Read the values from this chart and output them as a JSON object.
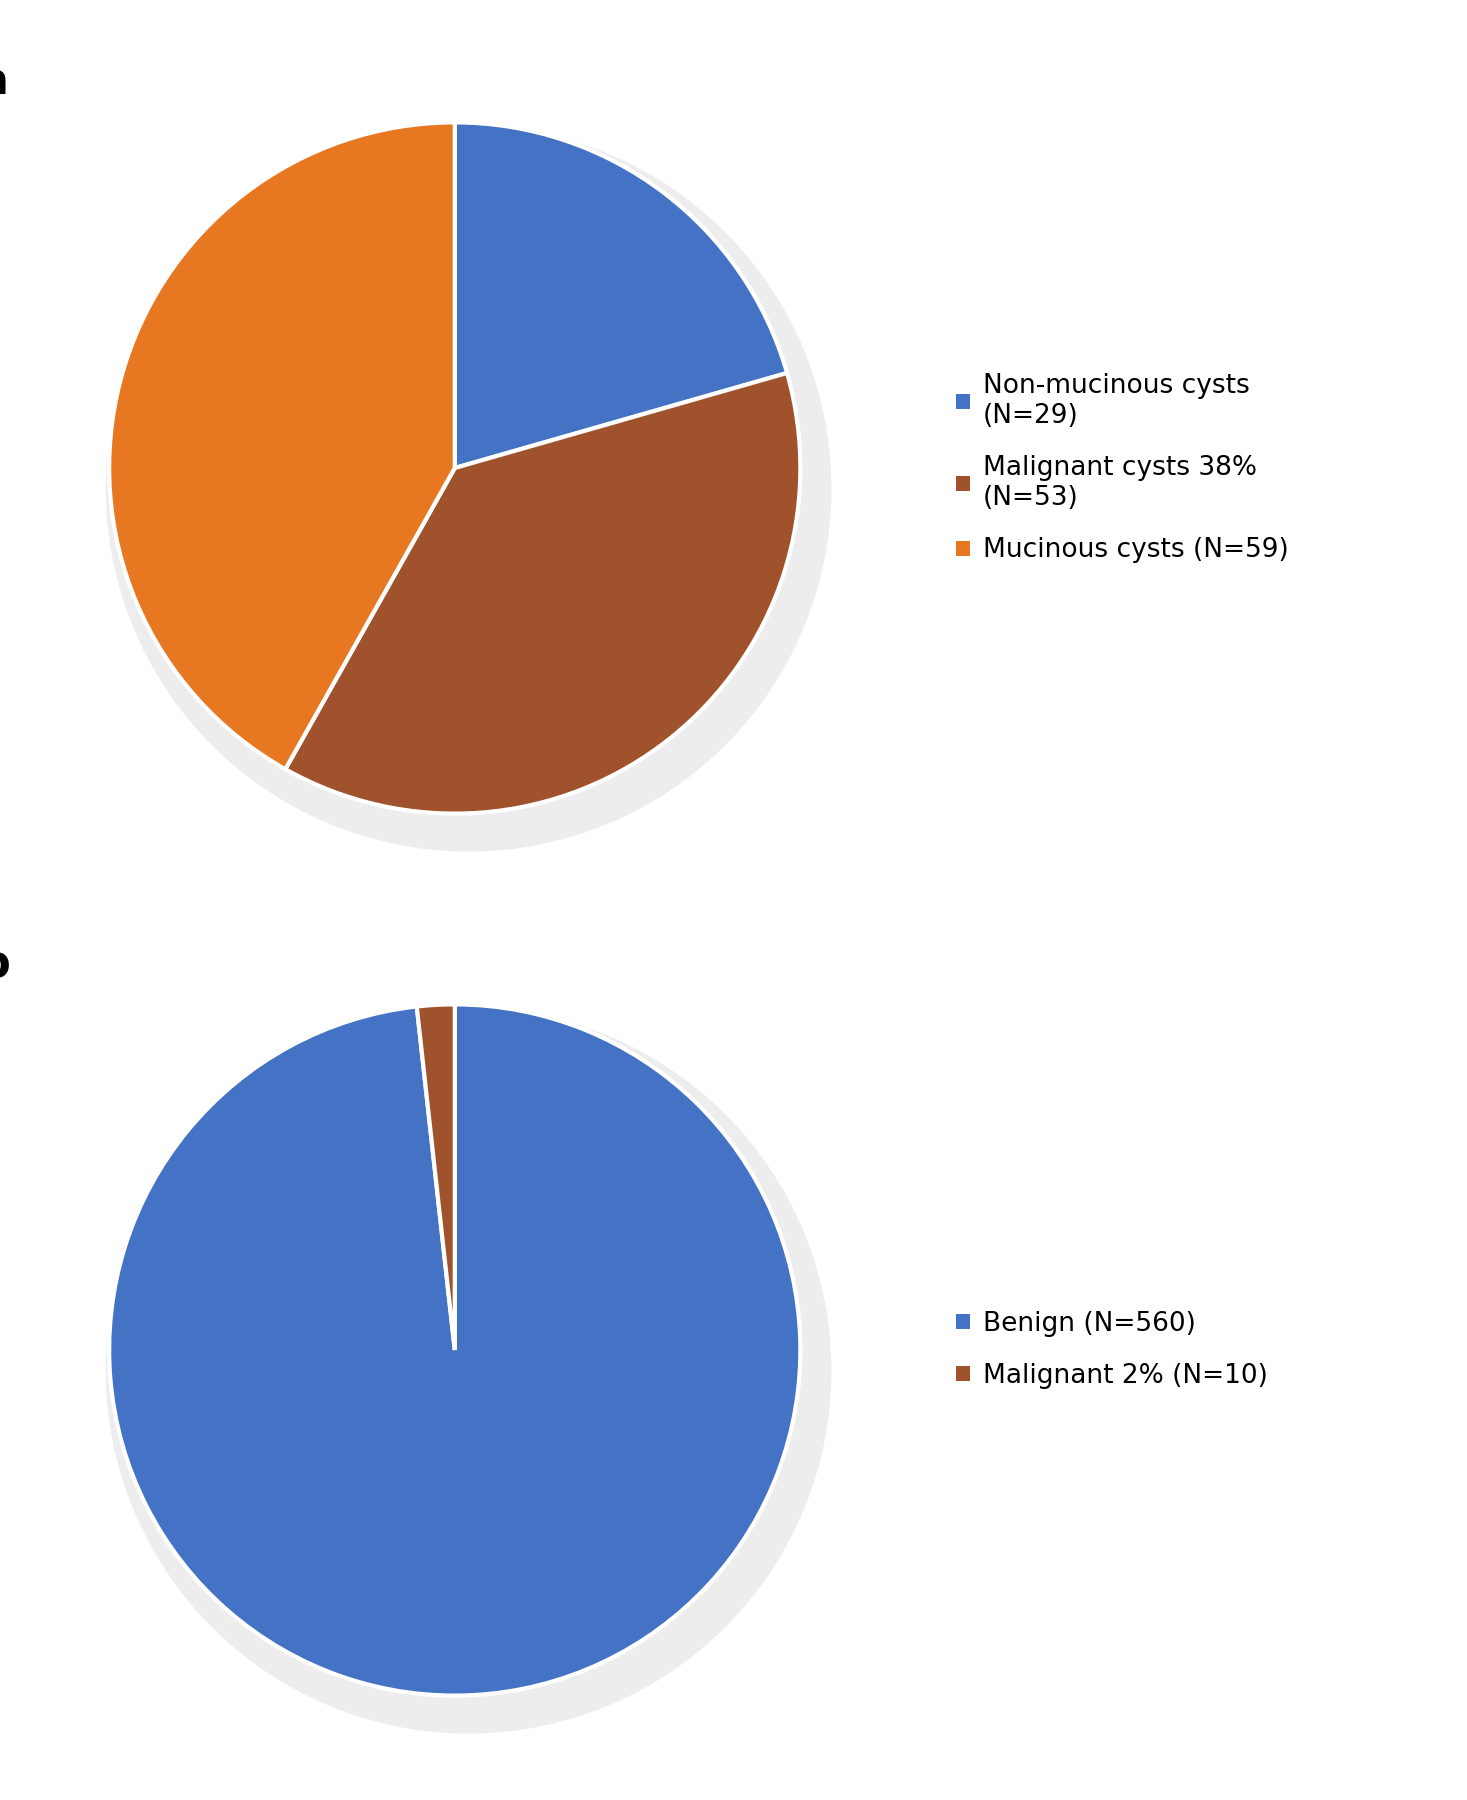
{
  "chart_a": {
    "label": "a",
    "values": [
      29,
      53,
      59
    ],
    "colors": [
      "#4472C4",
      "#A0522D",
      "#E87722"
    ],
    "legend_labels": [
      "Non-mucinous cysts\n(N=29)",
      "Malignant cysts 38%\n(N=53)",
      "Mucinous cysts (N=59)"
    ],
    "startangle": 90,
    "wedge_linewidth": 3.0,
    "wedge_linecolor": "white"
  },
  "chart_b": {
    "label": "b",
    "values": [
      560,
      10
    ],
    "colors": [
      "#4472C4",
      "#A0522D"
    ],
    "legend_labels": [
      "Benign (N=560)",
      "Malignant 2% (N=10)"
    ],
    "startangle": 90,
    "wedge_linewidth": 3.0,
    "wedge_linecolor": "white"
  },
  "background_color": "#ffffff",
  "label_fontsize": 32,
  "legend_fontsize": 19,
  "shadow_color": "#cccccc"
}
